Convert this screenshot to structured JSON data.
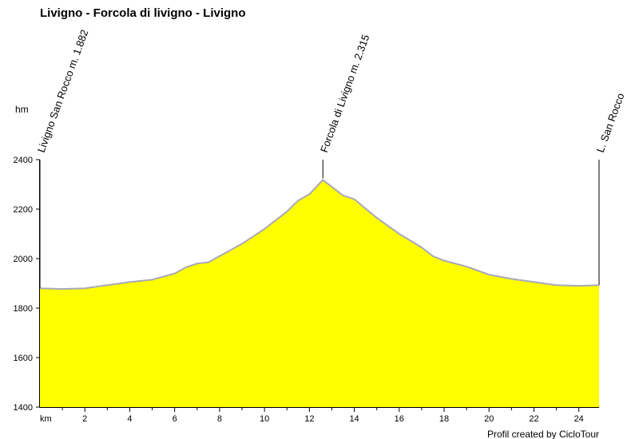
{
  "chart_data": {
    "type": "area",
    "title": "Livigno - Forcola di livigno - Livigno",
    "ylabel": "hm",
    "xlabel": "km",
    "credit": "Profil created by CicloTour",
    "xlim": [
      0,
      24.9
    ],
    "ylim": [
      1400,
      2400
    ],
    "yticks": [
      2400,
      2200,
      2000,
      1800,
      1600,
      1400
    ],
    "xticks": [
      2,
      4,
      6,
      8,
      10,
      12,
      14,
      16,
      18,
      20,
      22,
      24
    ],
    "fill_color": "#ffff00",
    "line_color": "#a8a8b8",
    "landmarks": [
      {
        "label": "Livigno San Rocco m. 1.882",
        "km": 0
      },
      {
        "label": "Forcola di Livigno m. 2.315",
        "km": 12.6
      },
      {
        "label": "L. San Rocco",
        "km": 24.9
      }
    ],
    "series": [
      {
        "x": [
          0,
          1.0,
          2.0,
          3.0,
          4.0,
          5.0,
          6.0,
          6.5,
          7.0,
          7.5,
          8.0,
          9.0,
          10.0,
          11.0,
          11.5,
          12.0,
          12.6,
          13.0,
          13.5,
          14.0,
          15.0,
          16.0,
          17.0,
          17.5,
          18.0,
          19.0,
          20.0,
          21.0,
          22.0,
          23.0,
          24.0,
          24.9
        ],
        "y": [
          1880,
          1877,
          1880,
          1893,
          1905,
          1915,
          1940,
          1965,
          1980,
          1985,
          2010,
          2060,
          2120,
          2190,
          2235,
          2260,
          2318,
          2290,
          2255,
          2240,
          2165,
          2100,
          2045,
          2010,
          1992,
          1968,
          1935,
          1918,
          1905,
          1893,
          1890,
          1893
        ]
      }
    ]
  }
}
